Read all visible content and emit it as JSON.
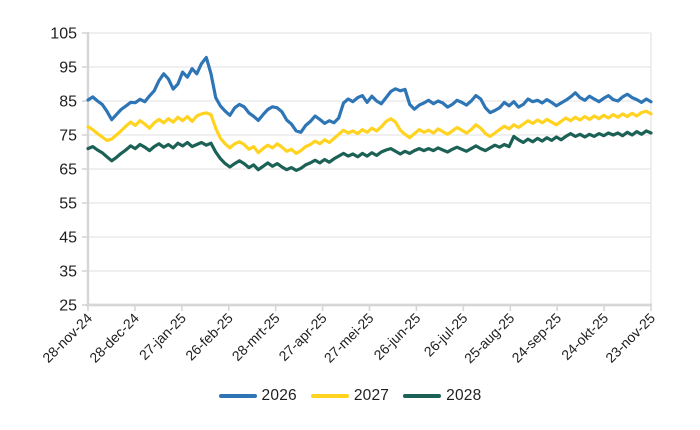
{
  "chart_data": {
    "type": "line",
    "grid": "horizontal",
    "legend_position": "bottom",
    "background_color": "#FFFFFF",
    "grid_color": "#E2E2E2",
    "axis_color": "#D6D6D6",
    "label_color": "#1F1F1F",
    "ylim": [
      25,
      105
    ],
    "y_ticks": [
      105,
      95,
      85,
      75,
      65,
      55,
      45,
      35,
      25
    ],
    "x_tick_labels": [
      "28-nov-24",
      "28-dec-24",
      "27-jan-25",
      "26-feb-25",
      "28-mrt-25",
      "27-apr-25",
      "27-mei-25",
      "26-jun-25",
      "26-jul-25",
      "25-aug-25",
      "24-sep-25",
      "24-okt-25",
      "23-nov-25"
    ],
    "series": [
      {
        "name": "2026",
        "color": "#2E75B6",
        "values": [
          85.3,
          86.2,
          85.0,
          84.0,
          82.0,
          79.5,
          81.0,
          82.5,
          83.5,
          84.6,
          84.5,
          85.5,
          84.8,
          86.5,
          88.0,
          91.0,
          93.0,
          91.5,
          88.5,
          90.0,
          93.5,
          92.0,
          94.5,
          93.0,
          96.0,
          97.8,
          93.0,
          86.0,
          83.5,
          82.0,
          80.8,
          83.0,
          84.0,
          83.3,
          81.5,
          80.5,
          79.3,
          81.0,
          82.5,
          83.3,
          83.0,
          81.8,
          79.4,
          78.2,
          76.2,
          75.8,
          77.8,
          79.0,
          80.6,
          79.6,
          78.4,
          79.2,
          78.6,
          80.0,
          84.4,
          85.6,
          84.8,
          86.0,
          86.6,
          84.6,
          86.4,
          85.0,
          84.2,
          86.0,
          87.8,
          88.6,
          88.0,
          88.4,
          84.0,
          82.6,
          83.8,
          84.4,
          85.2,
          84.2,
          85.0,
          84.4,
          83.2,
          84.0,
          85.2,
          84.6,
          83.8,
          85.0,
          86.6,
          85.6,
          83.0,
          81.6,
          82.2,
          83.0,
          84.6,
          83.6,
          84.8,
          83.2,
          84.0,
          85.6,
          84.8,
          85.2,
          84.4,
          85.4,
          84.6,
          83.6,
          84.4,
          85.2,
          86.2,
          87.4,
          86.0,
          85.2,
          86.4,
          85.6,
          84.8,
          85.8,
          86.6,
          85.4,
          85.0,
          86.2,
          87.0,
          86.0,
          85.4,
          84.6,
          85.6,
          84.8
        ]
      },
      {
        "name": "2027",
        "color": "#FFD320",
        "values": [
          77.4,
          76.6,
          75.4,
          74.4,
          73.4,
          73.8,
          75.0,
          76.2,
          77.6,
          78.8,
          77.8,
          79.2,
          78.2,
          77.0,
          78.6,
          79.6,
          78.6,
          79.8,
          78.8,
          80.2,
          79.2,
          80.4,
          79.0,
          80.6,
          81.2,
          81.5,
          81.0,
          77.0,
          74.0,
          72.4,
          71.2,
          72.4,
          73.0,
          72.2,
          70.8,
          71.6,
          69.8,
          71.0,
          72.0,
          71.2,
          72.4,
          71.4,
          70.2,
          70.8,
          69.6,
          70.4,
          71.6,
          72.2,
          73.2,
          72.4,
          73.6,
          72.8,
          74.0,
          75.2,
          76.4,
          75.6,
          76.2,
          75.4,
          76.6,
          75.8,
          77.0,
          76.2,
          77.4,
          79.0,
          79.8,
          78.8,
          76.4,
          75.2,
          74.2,
          75.4,
          76.6,
          75.8,
          76.4,
          75.6,
          76.8,
          76.0,
          75.2,
          76.2,
          77.2,
          76.4,
          75.6,
          76.6,
          78.0,
          77.0,
          75.4,
          74.6,
          75.6,
          76.6,
          77.6,
          76.8,
          78.0,
          77.2,
          78.2,
          79.2,
          78.4,
          79.4,
          78.6,
          79.6,
          78.8,
          78.0,
          79.0,
          80.0,
          79.2,
          80.2,
          79.4,
          80.4,
          79.6,
          80.6,
          79.8,
          80.8,
          80.0,
          81.0,
          80.2,
          81.2,
          80.4,
          81.4,
          80.6,
          81.6,
          82.0,
          81.2
        ]
      },
      {
        "name": "2028",
        "color": "#1B6155",
        "values": [
          71.0,
          71.6,
          70.6,
          69.8,
          68.6,
          67.4,
          68.4,
          69.6,
          70.6,
          71.8,
          71.0,
          72.2,
          71.4,
          70.4,
          71.6,
          72.4,
          71.4,
          72.2,
          71.2,
          72.6,
          71.8,
          72.8,
          71.6,
          72.2,
          72.8,
          72.0,
          72.6,
          70.0,
          68.0,
          66.6,
          65.6,
          66.6,
          67.4,
          66.6,
          65.4,
          66.2,
          64.8,
          65.8,
          66.8,
          65.8,
          66.6,
          65.6,
          64.8,
          65.4,
          64.6,
          65.2,
          66.2,
          66.8,
          67.6,
          66.8,
          67.8,
          67.0,
          68.0,
          68.8,
          69.6,
          68.8,
          69.4,
          68.6,
          69.6,
          68.8,
          69.8,
          69.0,
          70.0,
          70.6,
          71.0,
          70.2,
          69.4,
          70.2,
          69.6,
          70.4,
          71.0,
          70.4,
          71.0,
          70.4,
          71.2,
          70.6,
          70.0,
          70.8,
          71.4,
          70.8,
          70.2,
          71.0,
          71.8,
          71.0,
          70.4,
          71.2,
          72.0,
          71.4,
          72.2,
          71.6,
          74.6,
          73.6,
          72.8,
          73.8,
          73.0,
          74.0,
          73.2,
          74.2,
          73.4,
          74.4,
          73.6,
          74.6,
          75.4,
          74.6,
          75.2,
          74.4,
          75.2,
          74.6,
          75.4,
          74.8,
          75.6,
          75.0,
          75.6,
          74.8,
          75.8,
          75.0,
          76.0,
          75.2,
          76.2,
          75.6
        ]
      }
    ]
  }
}
